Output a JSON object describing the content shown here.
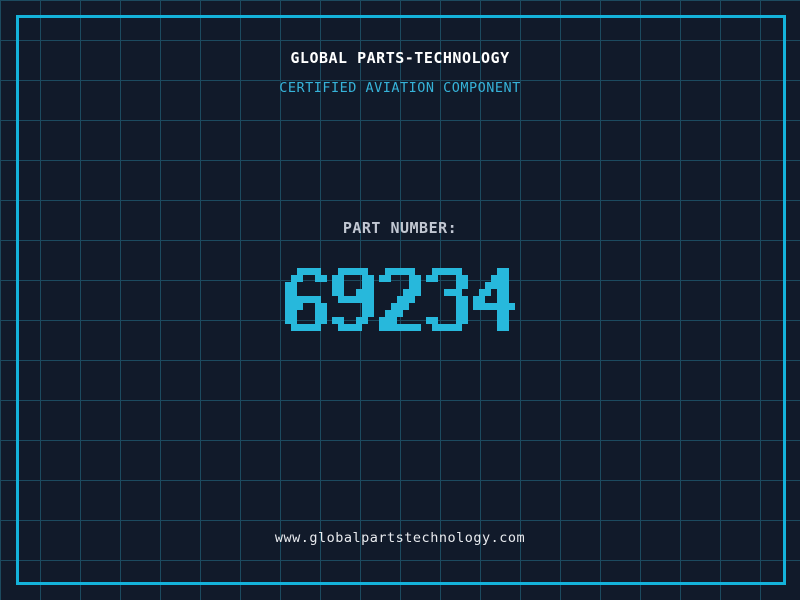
{
  "header": {
    "title": "GLOBAL PARTS-TECHNOLOGY",
    "subtitle": "CERTIFIED AVIATION COMPONENT"
  },
  "part": {
    "label": "PART NUMBER:",
    "value": "69234"
  },
  "footer": {
    "website": "www.globalpartstechnology.com"
  },
  "colors": {
    "background": "#111a2a",
    "grid_line": "#1c4a5f",
    "frame_border": "#14b2da",
    "title": "#ffffff",
    "subtitle": "#36b3d9",
    "label": "#c2c7d2",
    "digits": "#27b8dc",
    "footer": "#e9ebef"
  }
}
